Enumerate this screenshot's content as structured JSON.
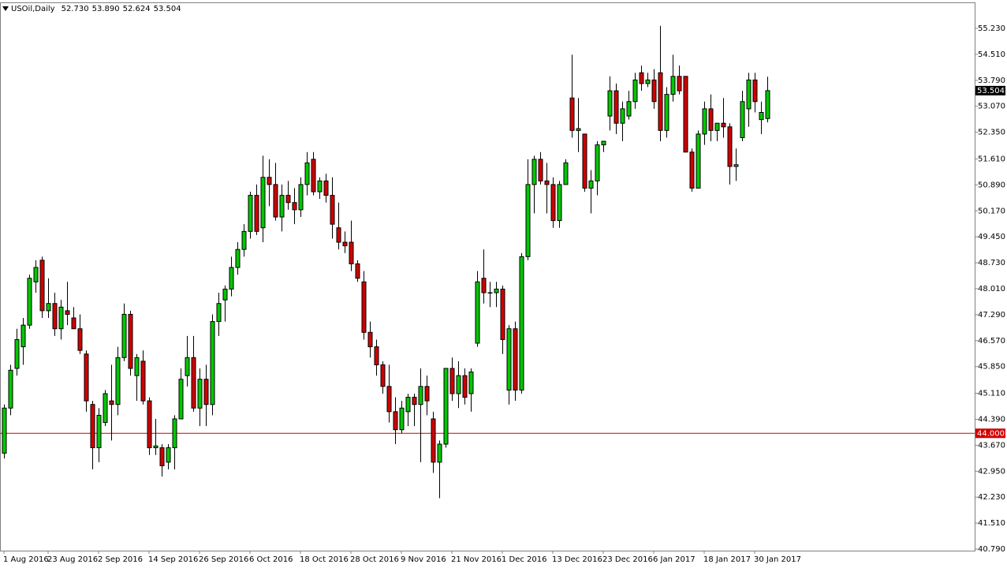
{
  "chart_data": {
    "type": "candlestick",
    "title": "USOil,Daily",
    "header_values": [
      "52.730",
      "53.890",
      "52.624",
      "53.504"
    ],
    "up_color": "#00c800",
    "down_color": "#d00000",
    "outline_color": "#000000",
    "ylim": [
      40.746,
      55.952
    ],
    "yticks": [
      {
        "value": 55.23,
        "label": "55.230"
      },
      {
        "value": 54.51,
        "label": "54.510"
      },
      {
        "value": 53.79,
        "label": "53.790"
      },
      {
        "value": 53.07,
        "label": "53.070"
      },
      {
        "value": 52.35,
        "label": "52.350"
      },
      {
        "value": 51.61,
        "label": "51.610"
      },
      {
        "value": 50.89,
        "label": "50.890"
      },
      {
        "value": 50.17,
        "label": "50.170"
      },
      {
        "value": 49.45,
        "label": "49.450"
      },
      {
        "value": 48.73,
        "label": "48.730"
      },
      {
        "value": 48.01,
        "label": "48.010"
      },
      {
        "value": 47.29,
        "label": "47.290"
      },
      {
        "value": 46.57,
        "label": "46.570"
      },
      {
        "value": 45.85,
        "label": "45.850"
      },
      {
        "value": 45.11,
        "label": "45.110"
      },
      {
        "value": 44.39,
        "label": "44.390"
      },
      {
        "value": 43.67,
        "label": "43.670"
      },
      {
        "value": 42.95,
        "label": "42.950"
      },
      {
        "value": 42.23,
        "label": "42.230"
      },
      {
        "value": 41.51,
        "label": "41.510"
      },
      {
        "value": 40.79,
        "label": "40.790"
      }
    ],
    "hline": {
      "value": 44,
      "label": "44.000",
      "color": "#d00000"
    },
    "last_price": {
      "value": 53.504,
      "label": "53.504"
    },
    "categories": [
      "1 Aug 2016",
      null,
      null,
      null,
      null,
      null,
      null,
      "23 Aug 2016",
      null,
      null,
      null,
      null,
      null,
      null,
      null,
      "2 Sep 2016",
      null,
      null,
      null,
      null,
      null,
      null,
      null,
      "14 Sep 2016",
      null,
      null,
      null,
      null,
      null,
      null,
      null,
      "26 Sep 2016",
      null,
      null,
      null,
      null,
      null,
      null,
      null,
      "6 Oct 2016",
      null,
      null,
      null,
      null,
      null,
      null,
      null,
      "18 Oct 2016",
      null,
      null,
      null,
      null,
      null,
      null,
      null,
      "28 Oct 2016",
      null,
      null,
      null,
      null,
      null,
      null,
      null,
      "9 Nov 2016",
      null,
      null,
      null,
      null,
      null,
      null,
      null,
      "21 Nov 2016",
      null,
      null,
      null,
      null,
      null,
      null,
      null,
      "1 Dec 2016",
      null,
      null,
      null,
      null,
      null,
      null,
      null,
      "13 Dec 2016",
      null,
      null,
      null,
      null,
      null,
      null,
      null,
      "23 Dec 2016",
      null,
      null,
      null,
      null,
      null,
      null,
      null,
      "6 Jan 2017",
      null,
      null,
      null,
      null,
      null,
      null,
      null,
      "18 Jan 2017",
      null,
      null,
      null,
      null,
      null,
      null,
      null,
      "30 Jan 2017",
      null,
      null
    ],
    "open": [
      43.45,
      44.7,
      45.8,
      46.4,
      47.0,
      48.2,
      48.8,
      47.4,
      47.6,
      46.9,
      47.4,
      47.2,
      46.9,
      46.2,
      44.8,
      43.6,
      44.3,
      44.9,
      44.8,
      46.1,
      47.3,
      45.6,
      46.0,
      44.9,
      43.6,
      43.6,
      43.2,
      43.6,
      44.4,
      45.6,
      46.1,
      44.7,
      45.5,
      44.8,
      47.1,
      47.7,
      48.0,
      48.6,
      49.1,
      49.6,
      50.6,
      49.7,
      51.1,
      50.9,
      50.0,
      50.6,
      50.4,
      50.2,
      50.9,
      51.6,
      50.7,
      51.0,
      50.6,
      49.7,
      49.3,
      49.3,
      48.7,
      48.2,
      46.8,
      46.4,
      45.9,
      45.3,
      44.6,
      44.1,
      44.6,
      45.0,
      44.8,
      45.3,
      44.4,
      43.2,
      43.7,
      45.8,
      45.1,
      45.6,
      45.1,
      46.5,
      48.3,
      47.9,
      47.9,
      48.0,
      45.2,
      46.9,
      45.2,
      48.9,
      50.9,
      51.6,
      51.0,
      50.9,
      49.9,
      50.9,
      53.3,
      52.4,
      52.3,
      50.8,
      51.0,
      52.0,
      52.8,
      53.5,
      52.6,
      52.8,
      53.2,
      54.0,
      53.7,
      53.8,
      54.0,
      52.4,
      53.4,
      53.9,
      53.9,
      51.8,
      50.8,
      52.3,
      53.0,
      52.4,
      52.6,
      52.5,
      51.4,
      52.2,
      53.0,
      53.8,
      52.7,
      52.73
    ],
    "high": [
      44.8,
      45.9,
      46.9,
      47.2,
      48.4,
      48.8,
      48.9,
      48.3,
      47.9,
      47.7,
      48.2,
      47.5,
      47.3,
      46.3,
      44.9,
      44.7,
      45.2,
      45.9,
      46.4,
      47.6,
      47.4,
      46.2,
      46.3,
      45.0,
      44.4,
      43.7,
      43.7,
      44.5,
      45.8,
      46.7,
      46.7,
      45.8,
      45.9,
      47.3,
      47.9,
      48.1,
      48.9,
      49.3,
      49.8,
      50.7,
      50.9,
      51.7,
      51.6,
      51.5,
      50.9,
      51.0,
      50.8,
      51.1,
      51.8,
      51.8,
      51.1,
      51.2,
      51.1,
      50.4,
      49.6,
      49.9,
      48.8,
      48.5,
      47.1,
      46.6,
      46.0,
      45.9,
      45.0,
      44.9,
      45.1,
      45.1,
      45.8,
      45.6,
      44.6,
      43.8,
      45.8,
      46.1,
      46.0,
      45.8,
      45.8,
      48.5,
      49.1,
      48.2,
      48.2,
      48.1,
      47.0,
      47.1,
      49.0,
      51.6,
      51.7,
      51.8,
      51.5,
      51.1,
      51.0,
      51.6,
      54.5,
      53.3,
      52.3,
      51.3,
      52.1,
      52.1,
      53.9,
      53.7,
      53.2,
      53.5,
      54.0,
      54.2,
      54.0,
      54.1,
      55.3,
      53.6,
      54.5,
      54.2,
      53.9,
      51.9,
      52.4,
      53.2,
      53.4,
      52.6,
      53.3,
      52.6,
      51.9,
      53.5,
      54.0,
      54.0,
      53.2,
      53.89
    ],
    "low": [
      43.3,
      44.5,
      45.6,
      45.9,
      46.9,
      47.9,
      47.2,
      47.2,
      46.7,
      46.6,
      47.0,
      46.9,
      46.2,
      44.6,
      43.0,
      43.2,
      44.2,
      43.8,
      44.5,
      46.0,
      45.6,
      44.9,
      44.8,
      43.4,
      43.4,
      42.8,
      43.0,
      43.0,
      44.4,
      45.3,
      44.6,
      44.2,
      44.2,
      44.5,
      46.7,
      47.1,
      47.8,
      48.4,
      48.9,
      49.4,
      49.5,
      49.3,
      50.3,
      49.9,
      49.6,
      50.2,
      49.8,
      50.0,
      50.6,
      50.6,
      50.5,
      50.4,
      49.4,
      49.1,
      49.0,
      48.5,
      48.2,
      46.6,
      46.1,
      45.6,
      45.1,
      44.3,
      43.7,
      44.0,
      44.2,
      44.2,
      43.2,
      44.5,
      42.9,
      42.2,
      43.6,
      44.9,
      44.7,
      44.8,
      44.6,
      46.4,
      47.6,
      47.5,
      47.5,
      46.2,
      44.8,
      44.9,
      45.1,
      48.8,
      50.1,
      50.9,
      50.1,
      49.7,
      49.7,
      50.9,
      52.2,
      51.8,
      50.7,
      50.1,
      50.6,
      51.8,
      52.4,
      52.3,
      52.1,
      52.7,
      53.0,
      53.5,
      53.6,
      53.0,
      52.1,
      52.2,
      53.2,
      53.4,
      51.8,
      50.7,
      50.8,
      52.0,
      52.1,
      52.1,
      52.2,
      50.9,
      51.0,
      52.1,
      52.5,
      52.9,
      52.3,
      52.624
    ],
    "close": [
      44.7,
      45.75,
      46.6,
      47.0,
      48.3,
      48.6,
      47.4,
      47.6,
      46.9,
      47.5,
      47.3,
      46.9,
      46.3,
      44.9,
      43.6,
      44.5,
      45.1,
      44.8,
      46.1,
      47.3,
      45.8,
      46.1,
      44.9,
      43.6,
      43.65,
      43.1,
      43.6,
      44.4,
      45.5,
      46.1,
      44.7,
      45.5,
      44.8,
      47.1,
      47.6,
      48.0,
      48.6,
      49.1,
      49.6,
      50.6,
      49.6,
      51.1,
      50.9,
      50.0,
      50.6,
      50.4,
      50.2,
      50.9,
      51.5,
      50.7,
      51.0,
      50.6,
      49.8,
      49.3,
      49.2,
      48.7,
      48.3,
      46.8,
      46.4,
      45.9,
      45.3,
      44.6,
      44.1,
      44.7,
      45.0,
      44.8,
      45.3,
      44.9,
      43.2,
      43.7,
      45.8,
      45.1,
      45.6,
      45.0,
      45.7,
      48.2,
      47.9,
      47.9,
      48.0,
      46.6,
      46.9,
      45.2,
      48.9,
      50.9,
      51.6,
      51.0,
      50.9,
      49.9,
      50.9,
      51.5,
      52.4,
      52.45,
      50.8,
      51.0,
      52.0,
      52.1,
      53.5,
      52.6,
      53.0,
      53.2,
      53.8,
      53.7,
      53.8,
      53.2,
      52.4,
      53.4,
      53.9,
      53.5,
      51.8,
      50.8,
      52.3,
      53.0,
      52.4,
      52.6,
      52.5,
      51.4,
      51.45,
      53.2,
      53.8,
      53.2,
      52.9,
      53.504
    ]
  }
}
